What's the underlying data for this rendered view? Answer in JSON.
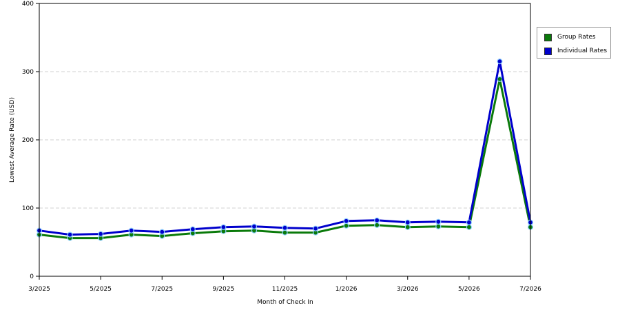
{
  "chart_data": {
    "type": "line",
    "title": "",
    "xlabel": "Month of Check In",
    "ylabel": "Lowest Average Rate (USD)",
    "ylim": [
      0,
      400
    ],
    "yticks": [
      "0",
      "100",
      "200",
      "300",
      "400"
    ],
    "xtick_labels": [
      "3/2025",
      "5/2025",
      "7/2025",
      "9/2025",
      "11/2025",
      "1/2026",
      "3/2026",
      "5/2026",
      "7/2026"
    ],
    "categories": [
      "3/2025",
      "4/2025",
      "5/2025",
      "6/2025",
      "7/2025",
      "8/2025",
      "9/2025",
      "10/2025",
      "11/2025",
      "12/2025",
      "1/2026",
      "2/2026",
      "3/2026",
      "4/2026",
      "5/2026",
      "6/2026",
      "7/2026"
    ],
    "grid": "horizontal-dashed",
    "legend_position": "right",
    "series": [
      {
        "name": "Group Rates",
        "color": "#0a7a0a",
        "values": [
          61,
          56,
          56,
          61,
          59,
          63,
          66,
          67,
          64,
          64,
          74,
          75,
          72,
          73,
          72,
          289,
          72
        ]
      },
      {
        "name": "Individual Rates",
        "color": "#0000cc",
        "values": [
          67,
          61,
          62,
          67,
          65,
          69,
          72,
          73,
          71,
          70,
          81,
          82,
          79,
          80,
          79,
          315,
          79
        ]
      }
    ]
  }
}
